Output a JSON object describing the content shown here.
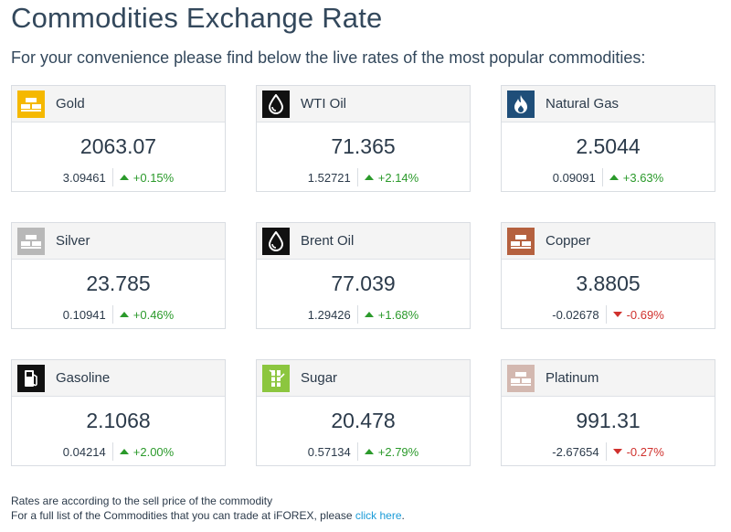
{
  "header": {
    "title": "Commodities Exchange Rate",
    "subtitle": "For your convenience please find below the live rates of the most popular commodities:"
  },
  "commodities": [
    {
      "name": "Gold",
      "price": "2063.07",
      "change": "3.09461",
      "pct": "+0.15%",
      "direction": "up",
      "icon": "gold-bars-icon",
      "icon_bg": "#f5b800"
    },
    {
      "name": "WTI Oil",
      "price": "71.365",
      "change": "1.52721",
      "pct": "+2.14%",
      "direction": "up",
      "icon": "oil-drop-icon",
      "icon_bg": "#111111"
    },
    {
      "name": "Natural Gas",
      "price": "2.5044",
      "change": "0.09091",
      "pct": "+3.63%",
      "direction": "up",
      "icon": "flame-icon",
      "icon_bg": "#1f4e79"
    },
    {
      "name": "Silver",
      "price": "23.785",
      "change": "0.10941",
      "pct": "+0.46%",
      "direction": "up",
      "icon": "silver-bars-icon",
      "icon_bg": "#b8b8b8"
    },
    {
      "name": "Brent Oil",
      "price": "77.039",
      "change": "1.29426",
      "pct": "+1.68%",
      "direction": "up",
      "icon": "oil-drop-icon",
      "icon_bg": "#111111"
    },
    {
      "name": "Copper",
      "price": "3.8805",
      "change": "-0.02678",
      "pct": "-0.69%",
      "direction": "down",
      "icon": "copper-bars-icon",
      "icon_bg": "#b5613f"
    },
    {
      "name": "Gasoline",
      "price": "2.1068",
      "change": "0.04214",
      "pct": "+2.00%",
      "direction": "up",
      "icon": "fuel-pump-icon",
      "icon_bg": "#111111"
    },
    {
      "name": "Sugar",
      "price": "20.478",
      "change": "0.57134",
      "pct": "+2.79%",
      "direction": "up",
      "icon": "sugar-cane-icon",
      "icon_bg": "#8cc63f"
    },
    {
      "name": "Platinum",
      "price": "991.31",
      "change": "-2.67654",
      "pct": "-0.27%",
      "direction": "down",
      "icon": "platinum-bars-icon",
      "icon_bg": "#d3b8b0"
    }
  ],
  "footer": {
    "line1": "Rates are according to the sell price of the commodity",
    "line2_prefix": "For a full list of the Commodities that you can trade at iFOREX, please ",
    "link": "click here",
    "line2_suffix": "."
  },
  "colors": {
    "up": "#2b9a2b",
    "down": "#d0312d",
    "link": "#1a9bd7"
  }
}
